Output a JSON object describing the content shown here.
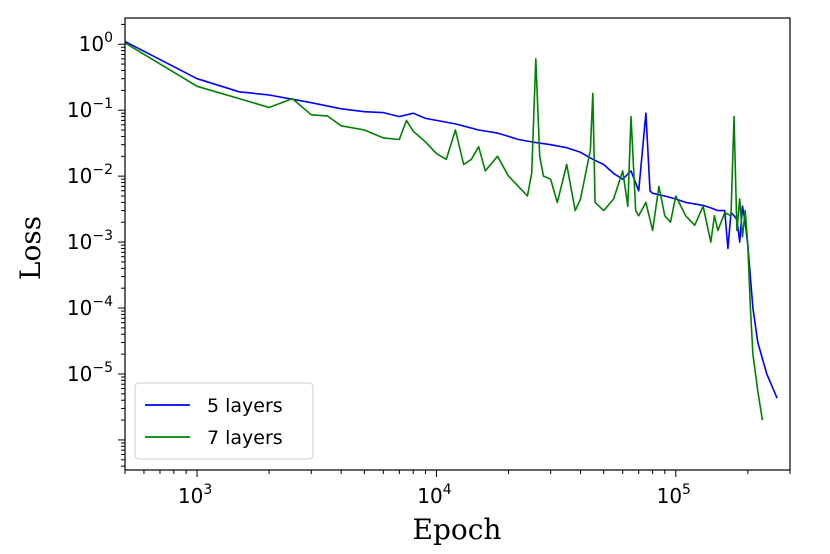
{
  "chart_data": {
    "type": "line",
    "title": "",
    "xlabel": "Epoch",
    "ylabel": "Loss",
    "xscale": "log",
    "yscale": "log",
    "xlim": [
      500,
      300000
    ],
    "ylim": [
      3.5e-07,
      2.5
    ],
    "grid": false,
    "legend_position": "bottom-left",
    "x_ticks": [
      {
        "base": "10",
        "exp": "3",
        "value": 1000
      },
      {
        "base": "10",
        "exp": "4",
        "value": 10000
      },
      {
        "base": "10",
        "exp": "5",
        "value": 100000
      }
    ],
    "y_ticks": [
      {
        "base": "10",
        "exp": "0",
        "value": 1
      },
      {
        "base": "10",
        "exp": "−1",
        "value": 0.1
      },
      {
        "base": "10",
        "exp": "−2",
        "value": 0.01
      },
      {
        "base": "10",
        "exp": "−3",
        "value": 0.001
      },
      {
        "base": "10",
        "exp": "−4",
        "value": 0.0001
      },
      {
        "base": "10",
        "exp": "−5",
        "value": 1e-05
      }
    ],
    "series": [
      {
        "name": "5 layers",
        "color": "#0000ff",
        "points": [
          [
            500,
            1.1
          ],
          [
            1000,
            0.3
          ],
          [
            1500,
            0.19
          ],
          [
            2000,
            0.17
          ],
          [
            3000,
            0.13
          ],
          [
            4000,
            0.105
          ],
          [
            5000,
            0.095
          ],
          [
            6000,
            0.092
          ],
          [
            7000,
            0.08
          ],
          [
            8000,
            0.09
          ],
          [
            9000,
            0.075
          ],
          [
            10000,
            0.07
          ],
          [
            12000,
            0.062
          ],
          [
            15000,
            0.05
          ],
          [
            18000,
            0.045
          ],
          [
            20000,
            0.04
          ],
          [
            22000,
            0.036
          ],
          [
            25000,
            0.033
          ],
          [
            30000,
            0.03
          ],
          [
            35000,
            0.027
          ],
          [
            40000,
            0.023
          ],
          [
            45000,
            0.018
          ],
          [
            50000,
            0.015
          ],
          [
            55000,
            0.011
          ],
          [
            60000,
            0.009
          ],
          [
            65000,
            0.012
          ],
          [
            70000,
            0.006
          ],
          [
            75000,
            0.09
          ],
          [
            78000,
            0.006
          ],
          [
            80000,
            0.0055
          ],
          [
            90000,
            0.005
          ],
          [
            100000,
            0.0045
          ],
          [
            110000,
            0.004
          ],
          [
            120000,
            0.0038
          ],
          [
            130000,
            0.0036
          ],
          [
            140000,
            0.0033
          ],
          [
            150000,
            0.003
          ],
          [
            160000,
            0.003
          ],
          [
            165000,
            0.0008
          ],
          [
            170000,
            0.0028
          ],
          [
            175000,
            0.0025
          ],
          [
            180000,
            0.0022
          ],
          [
            185000,
            0.001
          ],
          [
            190000,
            0.0035
          ],
          [
            195000,
            0.002
          ],
          [
            200000,
            0.0009
          ],
          [
            210000,
            0.0001
          ],
          [
            220000,
            3e-05
          ],
          [
            240000,
            1e-05
          ],
          [
            265000,
            4.3e-06
          ]
        ]
      },
      {
        "name": "7 layers",
        "color": "#008000",
        "points": [
          [
            500,
            1.05
          ],
          [
            1000,
            0.23
          ],
          [
            1500,
            0.15
          ],
          [
            2000,
            0.11
          ],
          [
            2500,
            0.15
          ],
          [
            3000,
            0.085
          ],
          [
            3500,
            0.082
          ],
          [
            4000,
            0.058
          ],
          [
            5000,
            0.05
          ],
          [
            6000,
            0.038
          ],
          [
            7000,
            0.036
          ],
          [
            7500,
            0.07
          ],
          [
            8000,
            0.048
          ],
          [
            9000,
            0.033
          ],
          [
            10000,
            0.022
          ],
          [
            11000,
            0.018
          ],
          [
            12000,
            0.05
          ],
          [
            13000,
            0.015
          ],
          [
            14000,
            0.018
          ],
          [
            15000,
            0.028
          ],
          [
            16000,
            0.012
          ],
          [
            18000,
            0.02
          ],
          [
            20000,
            0.01
          ],
          [
            22000,
            0.007
          ],
          [
            24000,
            0.005
          ],
          [
            25000,
            0.011
          ],
          [
            26000,
            0.6
          ],
          [
            27000,
            0.02
          ],
          [
            28000,
            0.01
          ],
          [
            30000,
            0.009
          ],
          [
            32000,
            0.004
          ],
          [
            35000,
            0.015
          ],
          [
            38000,
            0.003
          ],
          [
            40000,
            0.0045
          ],
          [
            44000,
            0.025
          ],
          [
            45000,
            0.18
          ],
          [
            46000,
            0.004
          ],
          [
            50000,
            0.003
          ],
          [
            55000,
            0.0045
          ],
          [
            60000,
            0.012
          ],
          [
            63000,
            0.0035
          ],
          [
            65000,
            0.08
          ],
          [
            68000,
            0.003
          ],
          [
            70000,
            0.0025
          ],
          [
            75000,
            0.004
          ],
          [
            80000,
            0.0015
          ],
          [
            85000,
            0.007
          ],
          [
            90000,
            0.0025
          ],
          [
            95000,
            0.002
          ],
          [
            100000,
            0.005
          ],
          [
            110000,
            0.0025
          ],
          [
            120000,
            0.0018
          ],
          [
            130000,
            0.0035
          ],
          [
            140000,
            0.001
          ],
          [
            145000,
            0.0025
          ],
          [
            150000,
            0.0015
          ],
          [
            160000,
            0.0028
          ],
          [
            170000,
            0.0025
          ],
          [
            175000,
            0.08
          ],
          [
            180000,
            0.0015
          ],
          [
            185000,
            0.0045
          ],
          [
            190000,
            0.0012
          ],
          [
            195000,
            0.003
          ],
          [
            200000,
            0.0009
          ],
          [
            205000,
            0.0001
          ],
          [
            210000,
            2e-05
          ],
          [
            220000,
            5.5e-06
          ],
          [
            230000,
            2e-06
          ]
        ]
      }
    ]
  }
}
